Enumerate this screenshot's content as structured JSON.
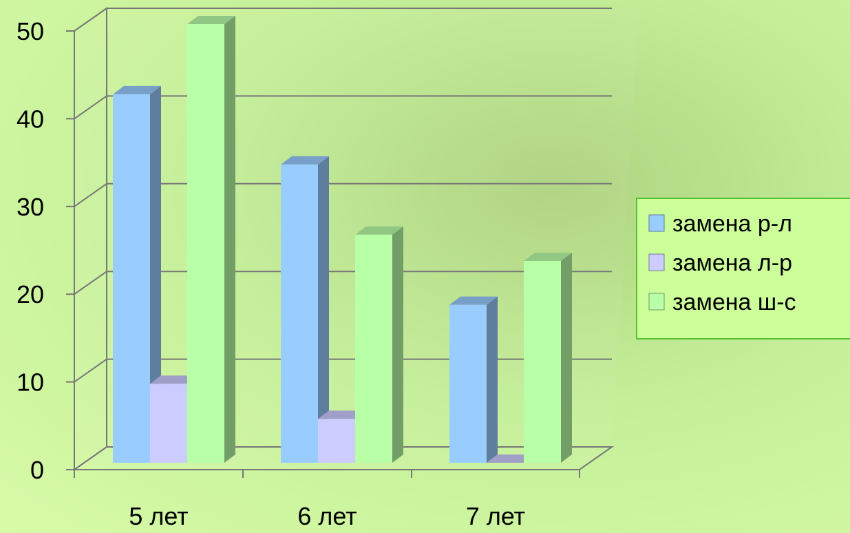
{
  "chart_data": {
    "type": "bar",
    "three_d": true,
    "categories": [
      "5 лет",
      "6 лет",
      "7 лет"
    ],
    "series": [
      {
        "name": "замена р-л",
        "values": [
          42,
          34,
          18
        ],
        "color": "#99ccff"
      },
      {
        "name": "замена л-р",
        "values": [
          9,
          5,
          0
        ],
        "color": "#ccccff"
      },
      {
        "name": "замена ш-с",
        "values": [
          50,
          26,
          23
        ],
        "color": "#b9ffa8"
      }
    ],
    "ylim": [
      0,
      50
    ],
    "yticks": [
      "0",
      "10",
      "20",
      "30",
      "40",
      "50"
    ],
    "title": "",
    "xlabel": "",
    "ylabel": "",
    "grid": true,
    "legend_position": "right"
  },
  "colors": {
    "gridline": "#777777",
    "legend_border": "#55c030",
    "legend_fill": "#ccff99"
  }
}
